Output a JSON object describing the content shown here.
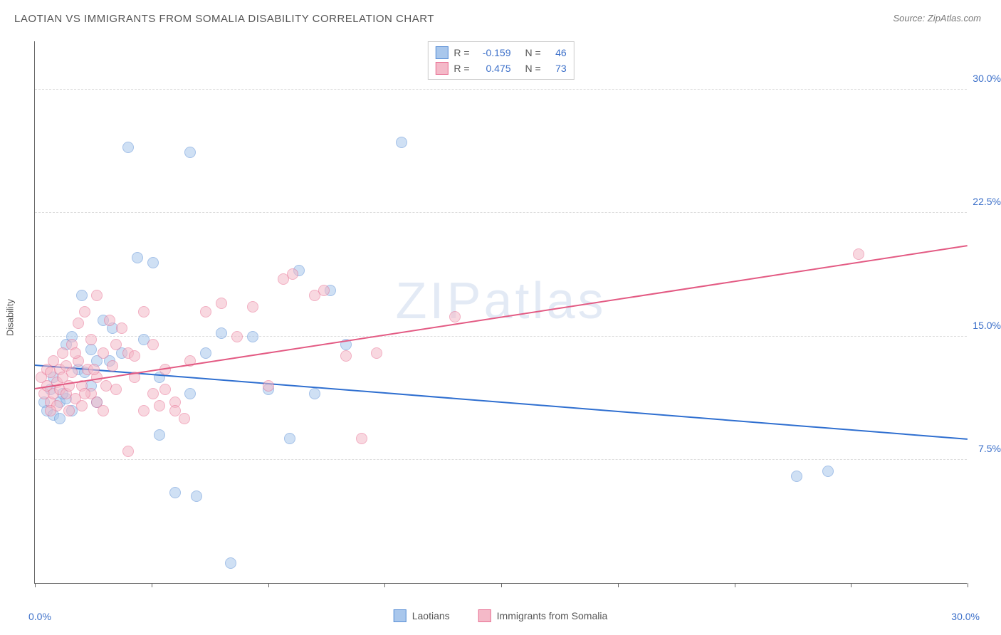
{
  "title": "LAOTIAN VS IMMIGRANTS FROM SOMALIA DISABILITY CORRELATION CHART",
  "source": "Source: ZipAtlas.com",
  "watermark": "ZIPatlas",
  "ylabel": "Disability",
  "chart": {
    "type": "scatter",
    "xlim": [
      0,
      30
    ],
    "ylim": [
      0,
      33
    ],
    "x_tick_positions": [
      0,
      3.75,
      7.5,
      11.25,
      15,
      18.75,
      22.5,
      26.25,
      30
    ],
    "x_min_label": "0.0%",
    "x_max_label": "30.0%",
    "y_gridlines": [
      7.5,
      15.0,
      22.5,
      30.0
    ],
    "y_tick_labels": [
      "7.5%",
      "15.0%",
      "22.5%",
      "30.0%"
    ],
    "background_color": "#ffffff",
    "grid_color": "#dddddd",
    "axis_color": "#666666",
    "tick_label_color": "#3b6fc9",
    "marker_radius": 8,
    "marker_opacity": 0.55,
    "series": [
      {
        "name": "Laotians",
        "fill": "#a9c7ec",
        "stroke": "#5a8fd6",
        "r_value": "-0.159",
        "n_value": "46",
        "trend": {
          "x1": 0,
          "y1": 13.2,
          "x2": 30,
          "y2": 8.7,
          "color": "#2f6fd0",
          "width": 2
        },
        "points": [
          [
            0.3,
            11.0
          ],
          [
            0.4,
            10.5
          ],
          [
            0.5,
            11.8
          ],
          [
            0.6,
            10.2
          ],
          [
            0.6,
            12.5
          ],
          [
            0.8,
            11.0
          ],
          [
            0.8,
            10.0
          ],
          [
            1.0,
            14.5
          ],
          [
            1.0,
            11.2
          ],
          [
            1.2,
            10.5
          ],
          [
            1.2,
            15.0
          ],
          [
            1.4,
            13.0
          ],
          [
            1.5,
            17.5
          ],
          [
            1.8,
            12.0
          ],
          [
            1.8,
            14.2
          ],
          [
            2.0,
            13.5
          ],
          [
            2.0,
            11.0
          ],
          [
            2.2,
            16.0
          ],
          [
            2.4,
            13.5
          ],
          [
            2.5,
            15.5
          ],
          [
            2.8,
            14.0
          ],
          [
            3.0,
            26.5
          ],
          [
            3.3,
            19.8
          ],
          [
            3.5,
            14.8
          ],
          [
            3.8,
            19.5
          ],
          [
            4.0,
            12.5
          ],
          [
            4.0,
            9.0
          ],
          [
            4.5,
            5.5
          ],
          [
            5.0,
            26.2
          ],
          [
            5.0,
            11.5
          ],
          [
            5.2,
            5.3
          ],
          [
            5.5,
            14.0
          ],
          [
            6.0,
            15.2
          ],
          [
            6.3,
            1.2
          ],
          [
            7.0,
            15.0
          ],
          [
            7.5,
            11.8
          ],
          [
            8.2,
            8.8
          ],
          [
            8.5,
            19.0
          ],
          [
            9.0,
            11.5
          ],
          [
            9.5,
            17.8
          ],
          [
            11.8,
            26.8
          ],
          [
            24.5,
            6.5
          ],
          [
            25.5,
            6.8
          ],
          [
            10.0,
            14.5
          ],
          [
            0.9,
            11.5
          ],
          [
            1.6,
            12.8
          ]
        ]
      },
      {
        "name": "Immigrants from Somalia",
        "fill": "#f4b9c8",
        "stroke": "#e86f92",
        "r_value": "0.475",
        "n_value": "73",
        "trend": {
          "x1": 0,
          "y1": 11.8,
          "x2": 30,
          "y2": 20.5,
          "color": "#e35a83",
          "width": 2
        },
        "points": [
          [
            0.2,
            12.5
          ],
          [
            0.3,
            11.5
          ],
          [
            0.4,
            12.0
          ],
          [
            0.4,
            13.0
          ],
          [
            0.5,
            11.0
          ],
          [
            0.5,
            12.8
          ],
          [
            0.6,
            11.5
          ],
          [
            0.6,
            13.5
          ],
          [
            0.7,
            12.2
          ],
          [
            0.7,
            10.8
          ],
          [
            0.8,
            13.0
          ],
          [
            0.8,
            11.8
          ],
          [
            0.9,
            12.5
          ],
          [
            0.9,
            14.0
          ],
          [
            1.0,
            11.5
          ],
          [
            1.0,
            13.2
          ],
          [
            1.1,
            12.0
          ],
          [
            1.1,
            10.5
          ],
          [
            1.2,
            14.5
          ],
          [
            1.2,
            12.8
          ],
          [
            1.3,
            11.2
          ],
          [
            1.4,
            13.5
          ],
          [
            1.4,
            15.8
          ],
          [
            1.5,
            12.0
          ],
          [
            1.5,
            10.8
          ],
          [
            1.6,
            16.5
          ],
          [
            1.7,
            13.0
          ],
          [
            1.8,
            11.5
          ],
          [
            1.8,
            14.8
          ],
          [
            2.0,
            17.5
          ],
          [
            2.0,
            12.5
          ],
          [
            2.2,
            14.0
          ],
          [
            2.2,
            10.5
          ],
          [
            2.4,
            16.0
          ],
          [
            2.5,
            13.2
          ],
          [
            2.6,
            11.8
          ],
          [
            2.8,
            15.5
          ],
          [
            3.0,
            8.0
          ],
          [
            3.0,
            14.0
          ],
          [
            3.2,
            12.5
          ],
          [
            3.5,
            16.5
          ],
          [
            3.5,
            10.5
          ],
          [
            3.8,
            11.5
          ],
          [
            4.0,
            10.8
          ],
          [
            4.2,
            13.0
          ],
          [
            4.5,
            11.0
          ],
          [
            4.5,
            10.5
          ],
          [
            4.8,
            10.0
          ],
          [
            5.0,
            13.5
          ],
          [
            5.5,
            16.5
          ],
          [
            6.0,
            17.0
          ],
          [
            6.5,
            15.0
          ],
          [
            7.0,
            16.8
          ],
          [
            7.5,
            12.0
          ],
          [
            8.0,
            18.5
          ],
          [
            8.3,
            18.8
          ],
          [
            9.0,
            17.5
          ],
          [
            9.3,
            17.8
          ],
          [
            10.0,
            13.8
          ],
          [
            10.5,
            8.8
          ],
          [
            11.0,
            14.0
          ],
          [
            13.5,
            16.2
          ],
          [
            26.5,
            20.0
          ],
          [
            2.0,
            11.0
          ],
          [
            2.3,
            12.0
          ],
          [
            1.6,
            11.5
          ],
          [
            1.3,
            14.0
          ],
          [
            0.5,
            10.5
          ],
          [
            3.2,
            13.8
          ],
          [
            3.8,
            14.5
          ],
          [
            4.2,
            11.8
          ],
          [
            1.9,
            13.0
          ],
          [
            2.6,
            14.5
          ]
        ]
      }
    ]
  },
  "legend": {
    "series1_label": "Laotians",
    "series2_label": "Immigrants from Somalia"
  }
}
